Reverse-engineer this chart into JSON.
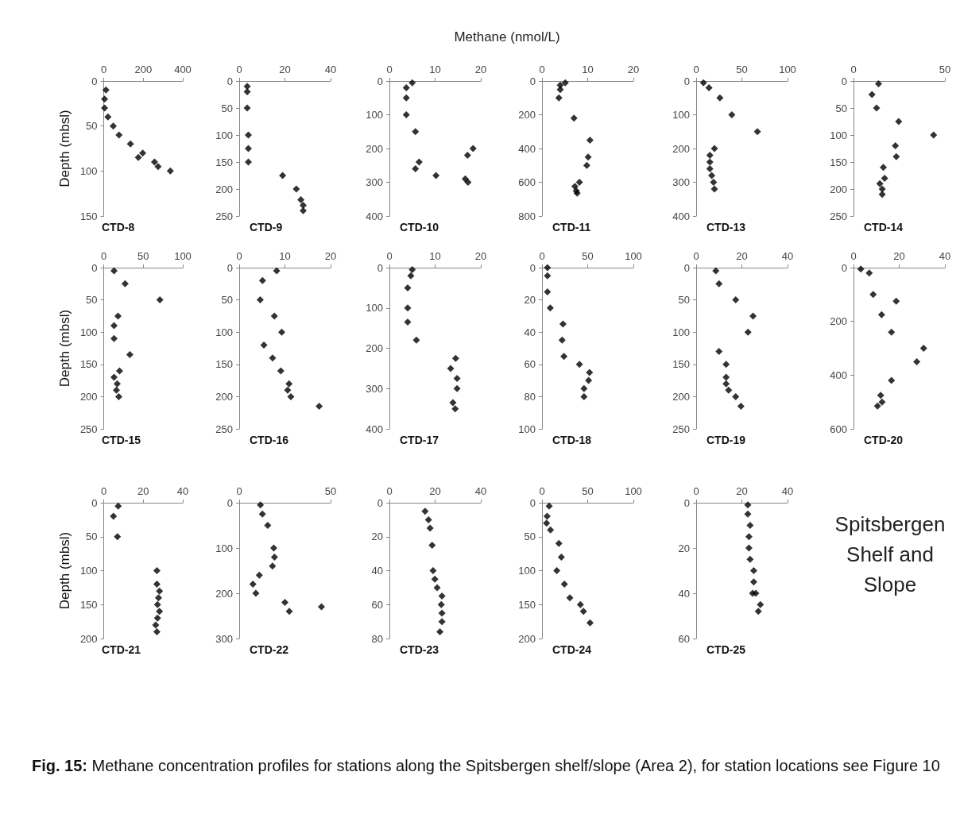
{
  "chart_data": [
    {
      "type": "other",
      "title": "Methane (nmol/L)"
    },
    {
      "type": "scatter",
      "title": "CTD-8",
      "ylabel": "Depth (mbsl)",
      "color": "#000000",
      "marker": "diamond",
      "x": [
        11,
        4,
        4,
        21,
        48,
        77,
        135,
        197,
        175,
        257,
        275,
        337
      ],
      "values": [
        10,
        20,
        30,
        40,
        50,
        60,
        70,
        80,
        85,
        90,
        95,
        100
      ],
      "xlim": [
        0,
        400
      ],
      "xticks": [
        0,
        200,
        400
      ],
      "ylim": [
        150,
        0
      ],
      "yticks": [
        0,
        50,
        100,
        150
      ]
    },
    {
      "type": "scatter",
      "title": "CTD-9",
      "color": "#000000",
      "marker": "diamond",
      "x": [
        3.5,
        3.5,
        3.5,
        4,
        4,
        4,
        19,
        25,
        27,
        28,
        28
      ],
      "values": [
        10,
        20,
        50,
        100,
        125,
        150,
        175,
        200,
        220,
        230,
        240
      ],
      "xlim": [
        0,
        40
      ],
      "xticks": [
        0,
        20,
        40
      ],
      "ylim": [
        250,
        0
      ],
      "yticks": [
        0,
        50,
        100,
        150,
        200,
        250
      ]
    },
    {
      "type": "scatter",
      "title": "CTD-10",
      "color": "#000000",
      "marker": "diamond",
      "x": [
        5,
        3.7,
        3.7,
        3.7,
        5.7,
        18.3,
        17.1,
        6.5,
        5.7,
        10.2,
        16.6,
        17.2
      ],
      "values": [
        5,
        20,
        50,
        100,
        150,
        200,
        220,
        240,
        260,
        280,
        290,
        300
      ],
      "xlim": [
        0,
        20
      ],
      "xticks": [
        0,
        10,
        20
      ],
      "ylim": [
        400,
        0
      ],
      "yticks": [
        0,
        100,
        200,
        300,
        400
      ]
    },
    {
      "type": "scatter",
      "title": "CTD-11",
      "color": "#000000",
      "marker": "diamond",
      "x": [
        5.1,
        4,
        4,
        3.7,
        7,
        10.5,
        10.1,
        9.8,
        8.2,
        7.2,
        7.5,
        7.7
      ],
      "values": [
        10,
        25,
        50,
        100,
        220,
        350,
        450,
        500,
        600,
        625,
        650,
        665
      ],
      "xlim": [
        0,
        20
      ],
      "xticks": [
        0,
        10,
        20
      ],
      "ylim": [
        800,
        0
      ],
      "yticks": [
        0,
        200,
        400,
        600,
        800
      ]
    },
    {
      "type": "scatter",
      "title": "CTD-13",
      "color": "#000000",
      "marker": "diamond",
      "x": [
        8,
        14,
        26,
        39,
        67,
        20,
        15,
        15,
        15,
        17,
        19,
        20
      ],
      "values": [
        5,
        20,
        50,
        100,
        150,
        200,
        220,
        240,
        260,
        280,
        300,
        320
      ],
      "xlim": [
        0,
        100
      ],
      "xticks": [
        0,
        50,
        100
      ],
      "ylim": [
        400,
        0
      ],
      "yticks": [
        0,
        100,
        200,
        300,
        400
      ]
    },
    {
      "type": "scatter",
      "title": "CTD-14",
      "color": "#000000",
      "marker": "diamond",
      "x": [
        13.7,
        10.1,
        12.6,
        24.7,
        43.8,
        22.9,
        23.4,
        16.3,
        17,
        14.4,
        15.7,
        15.7
      ],
      "values": [
        5,
        25,
        50,
        75,
        100,
        120,
        140,
        160,
        180,
        190,
        200,
        210
      ],
      "xlim": [
        0,
        50
      ],
      "xticks": [
        0,
        50
      ],
      "ylim": [
        250,
        0
      ],
      "yticks": [
        0,
        50,
        100,
        150,
        200,
        250
      ]
    },
    {
      "type": "scatter",
      "title": "CTD-15",
      "ylabel": "Depth (mbsl)",
      "color": "#000000",
      "marker": "diamond",
      "x": [
        13,
        27,
        71,
        18,
        13,
        13,
        33,
        20,
        13,
        17,
        16,
        19
      ],
      "values": [
        5,
        25,
        50,
        75,
        90,
        110,
        135,
        160,
        170,
        180,
        190,
        200
      ],
      "xlim": [
        0,
        100
      ],
      "xticks": [
        0,
        50,
        100
      ],
      "ylim": [
        250,
        0
      ],
      "yticks": [
        0,
        50,
        100,
        150,
        200,
        250
      ]
    },
    {
      "type": "scatter",
      "title": "CTD-16",
      "color": "#000000",
      "marker": "diamond",
      "x": [
        8.2,
        5.1,
        4.6,
        7.7,
        9.3,
        5.4,
        7.3,
        9.1,
        10.9,
        10.6,
        11.3,
        17.5
      ],
      "values": [
        5,
        20,
        50,
        75,
        100,
        120,
        140,
        160,
        180,
        190,
        200,
        215
      ],
      "xlim": [
        0,
        20
      ],
      "xticks": [
        0,
        10,
        20
      ],
      "ylim": [
        250,
        0
      ],
      "yticks": [
        0,
        50,
        100,
        150,
        200,
        250
      ]
    },
    {
      "type": "scatter",
      "title": "CTD-17",
      "color": "#000000",
      "marker": "diamond",
      "x": [
        5,
        4.7,
        4,
        4,
        4,
        5.9,
        14.5,
        13.4,
        14.8,
        14.8,
        13.9,
        14.4
      ],
      "values": [
        5,
        20,
        50,
        100,
        135,
        180,
        225,
        250,
        275,
        300,
        335,
        350
      ],
      "xlim": [
        0,
        20
      ],
      "xticks": [
        0,
        10,
        20
      ],
      "ylim": [
        400,
        0
      ],
      "yticks": [
        0,
        100,
        200,
        300,
        400
      ]
    },
    {
      "type": "scatter",
      "title": "CTD-18",
      "color": "#000000",
      "marker": "diamond",
      "x": [
        6,
        6,
        6,
        9,
        23,
        22,
        24,
        41,
        52,
        51,
        46,
        46
      ],
      "values": [
        0,
        5,
        15,
        25,
        35,
        45,
        55,
        60,
        65,
        70,
        75,
        80
      ],
      "xlim": [
        0,
        100
      ],
      "xticks": [
        0,
        50,
        100
      ],
      "ylim": [
        100,
        0
      ],
      "yticks": [
        0,
        20,
        40,
        60,
        80,
        100
      ]
    },
    {
      "type": "scatter",
      "title": "CTD-19",
      "color": "#000000",
      "marker": "diamond",
      "x": [
        8.6,
        10,
        17.3,
        24.9,
        22.7,
        10,
        13.1,
        13.1,
        13.1,
        14.2,
        17.3,
        19.6
      ],
      "values": [
        5,
        25,
        50,
        75,
        100,
        130,
        150,
        170,
        180,
        190,
        200,
        215
      ],
      "xlim": [
        0,
        40
      ],
      "xticks": [
        0,
        20,
        40
      ],
      "ylim": [
        250,
        0
      ],
      "yticks": [
        0,
        50,
        100,
        150,
        200,
        250
      ]
    },
    {
      "type": "scatter",
      "title": "CTD-20",
      "color": "#000000",
      "marker": "diamond",
      "x": [
        3.2,
        6.9,
        8.6,
        18.7,
        12.3,
        16.6,
        30.7,
        27.7,
        16.6,
        11.9,
        12.5,
        10.5
      ],
      "values": [
        5,
        20,
        100,
        125,
        175,
        240,
        300,
        350,
        420,
        475,
        500,
        515
      ],
      "xlim": [
        0,
        40
      ],
      "xticks": [
        0,
        20,
        40
      ],
      "ylim": [
        600,
        0
      ],
      "yticks": [
        0,
        200,
        400,
        600
      ]
    },
    {
      "type": "scatter",
      "title": "CTD-21",
      "ylabel": "Depth (mbsl)",
      "color": "#000000",
      "marker": "diamond",
      "x": [
        7.3,
        4.9,
        6.9,
        26.9,
        26.9,
        28.2,
        27.7,
        27.2,
        28.2,
        27.2,
        26.3,
        26.9
      ],
      "values": [
        5,
        20,
        50,
        100,
        120,
        130,
        140,
        150,
        160,
        170,
        180,
        190
      ],
      "xlim": [
        0,
        40
      ],
      "xticks": [
        0,
        20,
        40
      ],
      "ylim": [
        200,
        0
      ],
      "yticks": [
        0,
        50,
        100,
        150,
        200
      ]
    },
    {
      "type": "scatter",
      "title": "CTD-22",
      "color": "#000000",
      "marker": "diamond",
      "x": [
        11.6,
        12.7,
        15.6,
        18.9,
        19.3,
        18.2,
        11,
        7.5,
        9.1,
        25,
        45,
        27.4
      ],
      "values": [
        5,
        25,
        50,
        100,
        120,
        140,
        160,
        180,
        200,
        220,
        230,
        240
      ],
      "xlim": [
        0,
        50
      ],
      "xticks": [
        0,
        50
      ],
      "ylim": [
        300,
        0
      ],
      "yticks": [
        0,
        100,
        200,
        300
      ]
    },
    {
      "type": "scatter",
      "title": "CTD-23",
      "color": "#000000",
      "marker": "diamond",
      "x": [
        15.6,
        17.1,
        17.8,
        18.7,
        19.1,
        19.9,
        20.9,
        23,
        22.7,
        23,
        23,
        22.1
      ],
      "values": [
        5,
        10,
        15,
        25,
        40,
        45,
        50,
        55,
        60,
        65,
        70,
        76
      ],
      "xlim": [
        0,
        40
      ],
      "xticks": [
        0,
        20,
        40
      ],
      "ylim": [
        80,
        0
      ],
      "yticks": [
        0,
        20,
        40,
        60,
        80
      ]
    },
    {
      "type": "scatter",
      "title": "CTD-24",
      "color": "#000000",
      "marker": "diamond",
      "x": [
        7.9,
        5.6,
        5,
        9.3,
        18.5,
        21.2,
        16.2,
        24.5,
        30.5,
        42,
        45.4,
        52.6
      ],
      "values": [
        5,
        20,
        30,
        40,
        60,
        80,
        100,
        120,
        140,
        150,
        160,
        177
      ],
      "xlim": [
        0,
        100
      ],
      "xticks": [
        0,
        50,
        100
      ],
      "ylim": [
        200,
        0
      ],
      "yticks": [
        0,
        50,
        100,
        150,
        200
      ]
    },
    {
      "type": "scatter",
      "title": "CTD-25",
      "color": "#000000",
      "marker": "diamond",
      "x": [
        22.6,
        22.6,
        23.6,
        23.1,
        23.1,
        23.6,
        25.2,
        25.2,
        24.7,
        26.1,
        28.1,
        27.2
      ],
      "values": [
        1,
        5,
        10,
        15,
        20,
        25,
        30,
        35,
        40,
        40,
        45,
        48
      ],
      "xlim": [
        0,
        40
      ],
      "xticks": [
        0,
        20,
        40
      ],
      "ylim": [
        60,
        0
      ],
      "yticks": [
        0,
        20,
        40,
        60
      ]
    },
    {
      "type": "other",
      "title": "Spitsbergen Shelf and Slope"
    },
    {
      "type": "other",
      "annotations": [
        "Fig. 15: Methane concentration profiles for stations along the Spitsbergen shelf/slope (Area 2), for station locations see Figure 10"
      ]
    }
  ]
}
